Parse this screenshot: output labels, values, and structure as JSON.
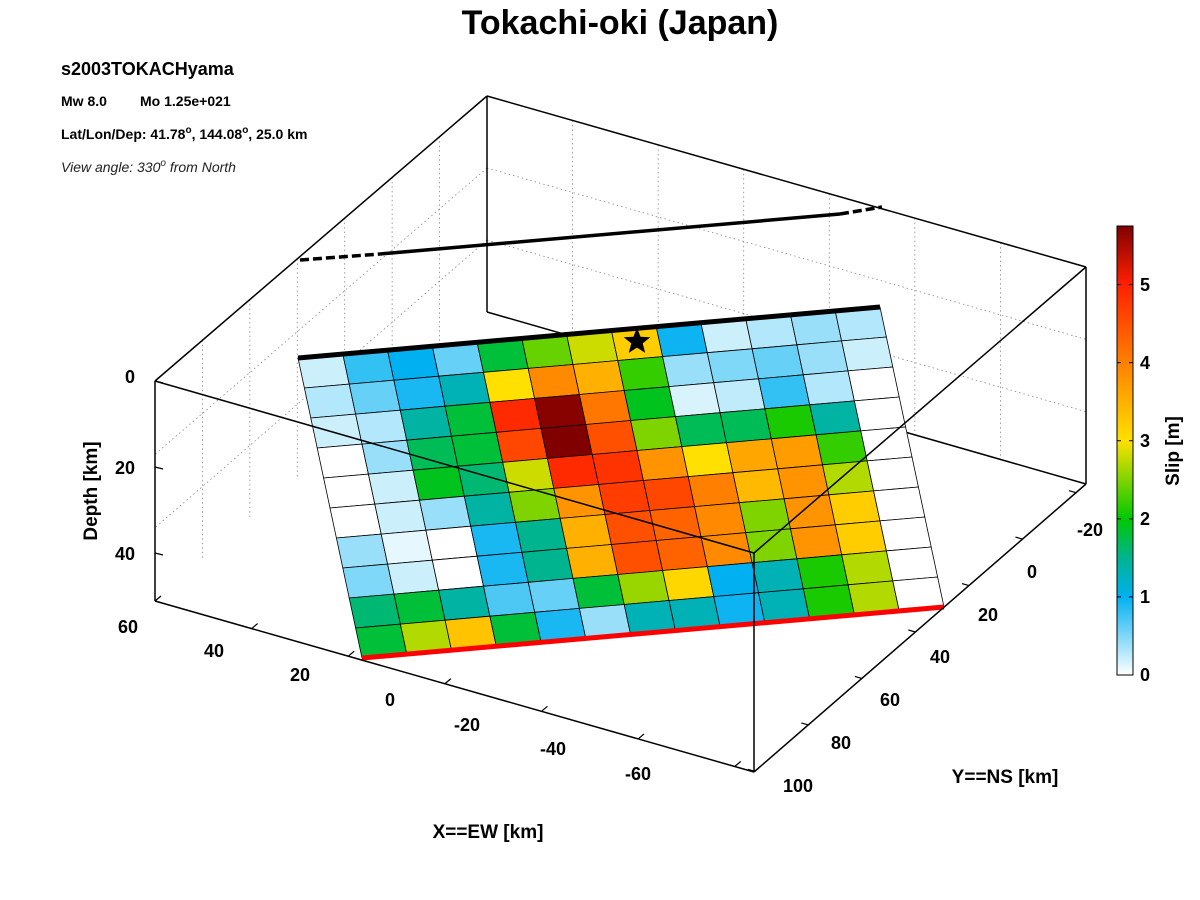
{
  "chart_data": {
    "type": "heatmap",
    "title": "Tokachi-oki (Japan)",
    "info": {
      "event_id": "s2003TOKACHyama",
      "magnitude": "Mw 8.0",
      "moment": "Mo 1.25e+021",
      "location_label": "Lat/Lon/Dep: 41.78",
      "lon_part": ", 144.08",
      "dep_part": ", 25.0 km",
      "deg_symbol": "o",
      "view_label": "View angle: 330",
      "view_part": " from North"
    },
    "xlabel": "X==EW [km]",
    "ylabel": "Y==NS [km]",
    "zlabel": "Depth [km]",
    "x_ticks": [
      "60",
      "40",
      "20",
      "0",
      "-20",
      "-40",
      "-60"
    ],
    "y_ticks": [
      "-20",
      "0",
      "20",
      "40",
      "60",
      "80",
      "100"
    ],
    "z_ticks": [
      "0",
      "20",
      "40"
    ],
    "colorbar": {
      "label": "Slip [m]",
      "range": [
        0,
        5.75
      ],
      "ticks": [
        "0",
        "1",
        "2",
        "3",
        "4",
        "5"
      ]
    },
    "slip_grid": [
      [
        0.2,
        0.8,
        1.0,
        0.6,
        1.8,
        2.4,
        2.8,
        3.2,
        0.95,
        0.2,
        0.3,
        0.4,
        0.3
      ],
      [
        0.3,
        0.6,
        0.9,
        1.3,
        3.0,
        3.9,
        3.5,
        2.2,
        0.4,
        0.5,
        0.6,
        0.4,
        0.2
      ],
      [
        0.2,
        0.3,
        1.4,
        1.8,
        4.9,
        5.7,
        4.1,
        1.9,
        0.15,
        0.25,
        0.8,
        0.3,
        0.0
      ],
      [
        0.0,
        0.4,
        1.7,
        1.8,
        4.6,
        5.75,
        4.5,
        2.5,
        1.7,
        1.7,
        2.1,
        1.4,
        0.0
      ],
      [
        0.0,
        0.2,
        1.9,
        1.6,
        2.8,
        4.9,
        4.8,
        3.8,
        3.0,
        3.6,
        3.7,
        2.2,
        0.0
      ],
      [
        0.0,
        0.2,
        0.4,
        1.4,
        2.5,
        3.8,
        4.7,
        4.6,
        4.0,
        3.4,
        3.8,
        2.7,
        0.0
      ],
      [
        0.4,
        0.1,
        0.0,
        0.9,
        1.5,
        3.5,
        4.5,
        4.3,
        3.9,
        2.5,
        3.8,
        3.2,
        0.0
      ],
      [
        0.5,
        0.2,
        0.0,
        0.9,
        1.5,
        3.5,
        4.5,
        4.3,
        3.9,
        2.5,
        3.8,
        3.2,
        0.0
      ],
      [
        1.6,
        1.8,
        1.4,
        0.7,
        0.6,
        1.8,
        2.6,
        3.1,
        1.0,
        1.3,
        2.1,
        2.7,
        0.0
      ],
      [
        1.8,
        2.7,
        3.3,
        1.8,
        0.9,
        0.4,
        1.3,
        1.3,
        0.95,
        1.3,
        2.1,
        2.7,
        0.0
      ]
    ],
    "hypocenter": {
      "row": 0,
      "col": 7
    },
    "grid": true
  }
}
